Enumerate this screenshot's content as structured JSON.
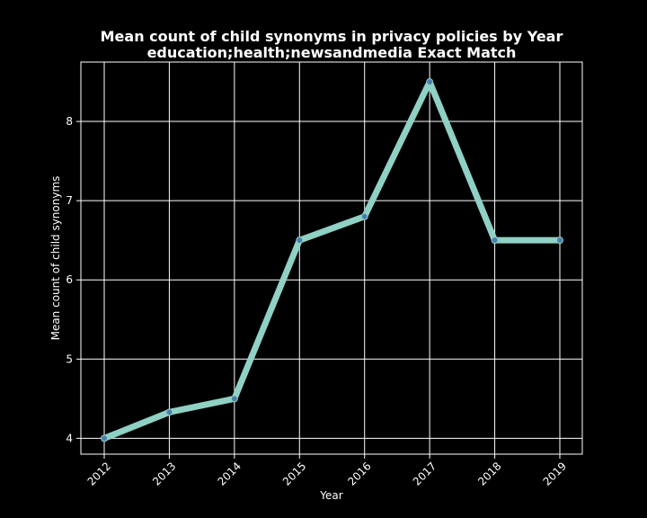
{
  "chart_data": {
    "type": "line",
    "title": "Mean count of child synonyms in privacy policies by Year",
    "subtitle": "education;health;newsandmedia Exact Match",
    "xlabel": "Year",
    "ylabel": "Mean count of child synonyms",
    "x": [
      "2012",
      "2013",
      "2014",
      "2015",
      "2016",
      "2017",
      "2018",
      "2019"
    ],
    "series": [
      {
        "values": [
          4.0,
          4.33,
          4.5,
          6.5,
          6.8,
          8.5,
          6.5,
          6.5
        ]
      }
    ],
    "ylim": [
      3.8,
      8.75
    ],
    "yticks": [
      4,
      5,
      6,
      7,
      8
    ],
    "grid": true,
    "colors": {
      "background": "#000000",
      "line": "#8fd1c4",
      "marker": "#4a7fb0",
      "grid": "#ffffff",
      "text": "#ffffff"
    }
  }
}
